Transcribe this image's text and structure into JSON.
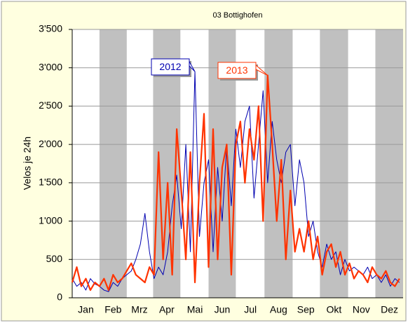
{
  "chart_data": {
    "type": "line",
    "title": "03 Bottighofen",
    "y_label": "Velos je 24h",
    "xlim": [
      1,
      365
    ],
    "xticks": [
      {
        "value": 16,
        "label": "Jan"
      },
      {
        "value": 46,
        "label": "Feb"
      },
      {
        "value": 75,
        "label": "Mrz"
      },
      {
        "value": 105,
        "label": "Apr"
      },
      {
        "value": 136,
        "label": "Mai"
      },
      {
        "value": 166,
        "label": "Jun"
      },
      {
        "value": 197,
        "label": "Jul"
      },
      {
        "value": 228,
        "label": "Aug"
      },
      {
        "value": 258,
        "label": "Sep"
      },
      {
        "value": 289,
        "label": "Okt"
      },
      {
        "value": 319,
        "label": "Nov"
      },
      {
        "value": 350,
        "label": "Dez"
      }
    ],
    "ylim": [
      0,
      3500
    ],
    "yticks": [
      0,
      500,
      {
        "value": 1000,
        "label": "1'000"
      },
      {
        "value": 1500,
        "label": "1'500"
      },
      {
        "value": 2000,
        "label": "2'000"
      },
      {
        "value": 2500,
        "label": "2'500"
      },
      {
        "value": 3000,
        "label": "3'000"
      },
      {
        "value": 3500,
        "label": "3'500"
      }
    ],
    "grid": true,
    "x": [
      1,
      6,
      11,
      16,
      21,
      26,
      31,
      36,
      41,
      46,
      51,
      56,
      61,
      66,
      71,
      76,
      81,
      86,
      91,
      96,
      101,
      106,
      111,
      116,
      121,
      126,
      131,
      136,
      141,
      146,
      151,
      156,
      161,
      166,
      171,
      176,
      181,
      186,
      191,
      196,
      201,
      206,
      211,
      216,
      221,
      226,
      231,
      236,
      241,
      246,
      251,
      256,
      261,
      266,
      271,
      276,
      281,
      286,
      291,
      296,
      301,
      306,
      311,
      316,
      321,
      326,
      331,
      336,
      341,
      346,
      351,
      356,
      361
    ],
    "series": [
      {
        "name": "2012",
        "color": "#0000b0",
        "width": 1,
        "values": [
          250,
          150,
          200,
          100,
          250,
          180,
          150,
          100,
          80,
          200,
          150,
          250,
          300,
          350,
          500,
          700,
          1100,
          600,
          250,
          400,
          300,
          600,
          1200,
          1600,
          900,
          2000,
          600,
          2950,
          800,
          1500,
          1800,
          600,
          1700,
          1000,
          2000,
          1200,
          2200,
          1700,
          2300,
          2500,
          1300,
          2000,
          2700,
          1500,
          2300,
          1800,
          1500,
          1900,
          2000,
          1200,
          1800,
          1500,
          800,
          1000,
          600,
          400,
          700,
          500,
          600,
          300,
          500,
          350,
          400,
          350,
          300,
          400,
          250,
          300,
          200,
          300,
          150,
          250,
          200
        ]
      },
      {
        "name": "2013",
        "color": "#ff3300",
        "width": 2.2,
        "values": [
          200,
          400,
          150,
          250,
          100,
          200,
          150,
          250,
          100,
          300,
          200,
          250,
          350,
          450,
          300,
          250,
          200,
          400,
          300,
          1900,
          500,
          1500,
          300,
          2200,
          1400,
          500,
          1900,
          200,
          1500,
          2400,
          400,
          2200,
          500,
          1700,
          2000,
          300,
          2000,
          2300,
          1500,
          2200,
          1800,
          2500,
          1000,
          2900,
          2000,
          1000,
          1800,
          500,
          1400,
          600,
          900,
          600,
          1000,
          500,
          800,
          300,
          600,
          700,
          400,
          600,
          300,
          450,
          250,
          350,
          300,
          200,
          400,
          300,
          250,
          350,
          200,
          150,
          250
        ]
      }
    ]
  }
}
